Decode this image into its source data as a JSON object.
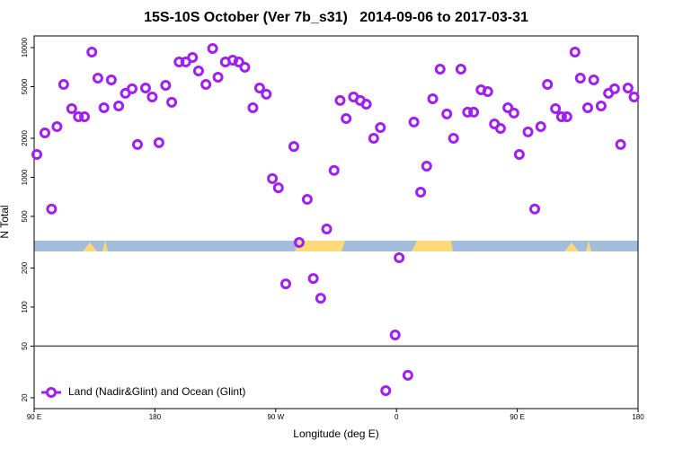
{
  "chart_data": {
    "type": "scatter",
    "title": "15S-10S October (Ver 7b_s31)   2014-09-06 to 2017-03-31",
    "x_label": "Longitude (deg E)",
    "y_label": "N Total",
    "xlim": [
      90,
      540
    ],
    "ylim": [
      16.5,
      12300
    ],
    "y_log": true,
    "xticks": [
      {
        "value": 90,
        "label": "90 E"
      },
      {
        "value": 180,
        "label": "180"
      },
      {
        "value": 270,
        "label": "90 W"
      },
      {
        "value": 360,
        "label": "0"
      },
      {
        "value": 450,
        "label": "90 E"
      },
      {
        "value": 540,
        "label": "180"
      }
    ],
    "yticks": [
      20,
      50,
      100,
      200,
      500,
      1000,
      2000,
      5000,
      10000
    ],
    "hline": 50,
    "legend": "lower left",
    "series": [
      {
        "name": "Land (Nadir&Glint) and Ocean (Glint)",
        "color": "#a020f0",
        "x": [
          92,
          98,
          103,
          107,
          112,
          118,
          123,
          127.5,
          133,
          137.5,
          142,
          147.5,
          153,
          158,
          163,
          167,
          173,
          178,
          183,
          188,
          192.5,
          198,
          203,
          208,
          212.5,
          218,
          223,
          227,
          232.5,
          238,
          242.5,
          247,
          253,
          258,
          263,
          267.5,
          272,
          277.5,
          283.5,
          287.5,
          293.5,
          298,
          303.5,
          308,
          313.5,
          318,
          322.5,
          328,
          333,
          337.5,
          343,
          348,
          352,
          359,
          362,
          368.5,
          373,
          378,
          382.5,
          387,
          392.5,
          397.5,
          402.5,
          408,
          413,
          417.5,
          423,
          428,
          433,
          437.5,
          443,
          447.5,
          451.5,
          458,
          463,
          467.5,
          472.5,
          478.5,
          483,
          487,
          493,
          497,
          502.5,
          507,
          512.5,
          518,
          522.5,
          527,
          532.5,
          537
        ],
        "values": [
          1500,
          2200,
          570,
          2460,
          5200,
          3380,
          2930,
          2930,
          9230,
          5820,
          3440,
          5630,
          3550,
          4440,
          4810,
          1790,
          4880,
          4160,
          1850,
          5120,
          3790,
          7750,
          7750,
          8390,
          6610,
          5200,
          9840,
          5910,
          7750,
          8000,
          7750,
          7050,
          3440,
          4880,
          4370,
          977,
          831,
          151,
          1730,
          315,
          677,
          166,
          117,
          400,
          1130,
          3910,
          2840,
          4160,
          3910,
          3660,
          2000,
          2420,
          22.7,
          61,
          240,
          29.8,
          2670,
          769,
          1220,
          4030,
          6820,
          3080,
          2000,
          6820,
          3180,
          3180,
          4730,
          4580,
          2580,
          2380,
          3440,
          3130,
          1500,
          2240,
          570,
          2460,
          5200,
          3380,
          2930,
          2930,
          9230,
          5820,
          3440,
          5630,
          3550,
          4440,
          4810,
          1790,
          4880,
          4160
        ]
      }
    ]
  }
}
